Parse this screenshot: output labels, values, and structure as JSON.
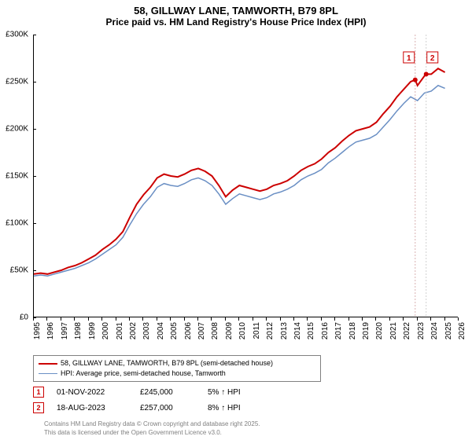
{
  "title1": "58, GILLWAY LANE, TAMWORTH, B79 8PL",
  "title2": "Price paid vs. HM Land Registry's House Price Index (HPI)",
  "chart": {
    "type": "line",
    "x_range": [
      1995,
      2026
    ],
    "y_range": [
      0,
      300000
    ],
    "y_ticks": [
      0,
      50000,
      100000,
      150000,
      200000,
      250000,
      300000
    ],
    "y_tick_labels": [
      "£0",
      "£50K",
      "£100K",
      "£150K",
      "£200K",
      "£250K",
      "£300K"
    ],
    "x_ticks": [
      1995,
      1996,
      1997,
      1998,
      1999,
      2000,
      2001,
      2002,
      2003,
      2004,
      2005,
      2006,
      2007,
      2008,
      2009,
      2010,
      2011,
      2012,
      2013,
      2014,
      2015,
      2016,
      2017,
      2018,
      2019,
      2020,
      2021,
      2022,
      2023,
      2024,
      2025,
      2026
    ],
    "background_color": "#ffffff",
    "series": [
      {
        "name": "price_paid",
        "color": "#cc0000",
        "width": 2,
        "points": [
          [
            1995,
            46
          ],
          [
            1995.5,
            47
          ],
          [
            1996,
            46
          ],
          [
            1996.5,
            48
          ],
          [
            1997,
            50
          ],
          [
            1997.5,
            53
          ],
          [
            1998,
            55
          ],
          [
            1998.5,
            58
          ],
          [
            1999,
            62
          ],
          [
            1999.5,
            66
          ],
          [
            2000,
            72
          ],
          [
            2000.5,
            77
          ],
          [
            2001,
            83
          ],
          [
            2001.5,
            91
          ],
          [
            2002,
            106
          ],
          [
            2002.5,
            120
          ],
          [
            2003,
            130
          ],
          [
            2003.5,
            138
          ],
          [
            2004,
            148
          ],
          [
            2004.5,
            152
          ],
          [
            2005,
            150
          ],
          [
            2005.5,
            149
          ],
          [
            2006,
            152
          ],
          [
            2006.5,
            156
          ],
          [
            2007,
            158
          ],
          [
            2007.5,
            155
          ],
          [
            2008,
            150
          ],
          [
            2008.5,
            140
          ],
          [
            2009,
            128
          ],
          [
            2009.5,
            135
          ],
          [
            2010,
            140
          ],
          [
            2010.5,
            138
          ],
          [
            2011,
            136
          ],
          [
            2011.5,
            134
          ],
          [
            2012,
            136
          ],
          [
            2012.5,
            140
          ],
          [
            2013,
            142
          ],
          [
            2013.5,
            145
          ],
          [
            2014,
            150
          ],
          [
            2014.5,
            156
          ],
          [
            2015,
            160
          ],
          [
            2015.5,
            163
          ],
          [
            2016,
            168
          ],
          [
            2016.5,
            175
          ],
          [
            2017,
            180
          ],
          [
            2017.5,
            187
          ],
          [
            2018,
            193
          ],
          [
            2018.5,
            198
          ],
          [
            2019,
            200
          ],
          [
            2019.5,
            202
          ],
          [
            2020,
            207
          ],
          [
            2020.5,
            216
          ],
          [
            2021,
            224
          ],
          [
            2021.5,
            234
          ],
          [
            2022,
            242
          ],
          [
            2022.5,
            250
          ],
          [
            2022.83,
            252
          ],
          [
            2023,
            246
          ],
          [
            2023.6,
            258
          ],
          [
            2024,
            258
          ],
          [
            2024.5,
            264
          ],
          [
            2025,
            260
          ]
        ]
      },
      {
        "name": "hpi",
        "color": "#6a8fc4",
        "width": 1.5,
        "points": [
          [
            1995,
            44
          ],
          [
            1995.5,
            45
          ],
          [
            1996,
            44
          ],
          [
            1996.5,
            46
          ],
          [
            1997,
            48
          ],
          [
            1997.5,
            50
          ],
          [
            1998,
            52
          ],
          [
            1998.5,
            55
          ],
          [
            1999,
            58
          ],
          [
            1999.5,
            62
          ],
          [
            2000,
            67
          ],
          [
            2000.5,
            72
          ],
          [
            2001,
            77
          ],
          [
            2001.5,
            85
          ],
          [
            2002,
            98
          ],
          [
            2002.5,
            110
          ],
          [
            2003,
            120
          ],
          [
            2003.5,
            128
          ],
          [
            2004,
            138
          ],
          [
            2004.5,
            142
          ],
          [
            2005,
            140
          ],
          [
            2005.5,
            139
          ],
          [
            2006,
            142
          ],
          [
            2006.5,
            146
          ],
          [
            2007,
            148
          ],
          [
            2007.5,
            145
          ],
          [
            2008,
            140
          ],
          [
            2008.5,
            131
          ],
          [
            2009,
            120
          ],
          [
            2009.5,
            126
          ],
          [
            2010,
            131
          ],
          [
            2010.5,
            129
          ],
          [
            2011,
            127
          ],
          [
            2011.5,
            125
          ],
          [
            2012,
            127
          ],
          [
            2012.5,
            131
          ],
          [
            2013,
            133
          ],
          [
            2013.5,
            136
          ],
          [
            2014,
            140
          ],
          [
            2014.5,
            146
          ],
          [
            2015,
            150
          ],
          [
            2015.5,
            153
          ],
          [
            2016,
            157
          ],
          [
            2016.5,
            164
          ],
          [
            2017,
            169
          ],
          [
            2017.5,
            175
          ],
          [
            2018,
            181
          ],
          [
            2018.5,
            186
          ],
          [
            2019,
            188
          ],
          [
            2019.5,
            190
          ],
          [
            2020,
            194
          ],
          [
            2020.5,
            202
          ],
          [
            2021,
            210
          ],
          [
            2021.5,
            219
          ],
          [
            2022,
            227
          ],
          [
            2022.5,
            234
          ],
          [
            2023,
            230
          ],
          [
            2023.5,
            238
          ],
          [
            2024,
            240
          ],
          [
            2024.5,
            246
          ],
          [
            2025,
            243
          ]
        ]
      }
    ],
    "markers": [
      {
        "id": "1",
        "x": 2022.83,
        "y": 252,
        "vline_color": "#d8b0b0"
      },
      {
        "id": "2",
        "x": 2023.63,
        "y": 258,
        "vline_color": "#d0d0d0"
      }
    ]
  },
  "legend": {
    "item1": "58, GILLWAY LANE, TAMWORTH, B79 8PL (semi-detached house)",
    "item2": "HPI: Average price, semi-detached house, Tamworth"
  },
  "rows": [
    {
      "id": "1",
      "date": "01-NOV-2022",
      "price": "£245,000",
      "pct": "5% ↑ HPI"
    },
    {
      "id": "2",
      "date": "18-AUG-2023",
      "price": "£257,000",
      "pct": "8% ↑ HPI"
    }
  ],
  "footer1": "Contains HM Land Registry data © Crown copyright and database right 2025.",
  "footer2": "This data is licensed under the Open Government Licence v3.0."
}
